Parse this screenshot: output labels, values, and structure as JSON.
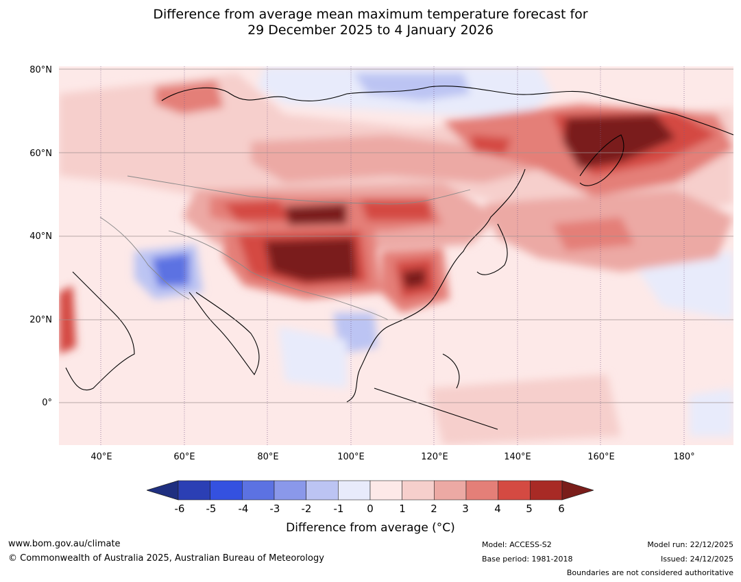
{
  "title_line1": "Difference from average mean maximum temperature forecast for",
  "title_line2": "29 December 2025 to 4 January 2026",
  "lat_labels": [
    "80°N",
    "60°N",
    "40°N",
    "20°N",
    "0°"
  ],
  "lon_labels": [
    "40°E",
    "60°E",
    "80°E",
    "100°E",
    "120°E",
    "140°E",
    "160°E",
    "180°"
  ],
  "colorbar": {
    "ticks": [
      "-6",
      "-5",
      "-4",
      "-3",
      "-2",
      "-1",
      "0",
      "1",
      "2",
      "3",
      "4",
      "5",
      "6"
    ],
    "colors": [
      "#1f2f80",
      "#2b3fb4",
      "#3451e0",
      "#5c72e2",
      "#8a98ea",
      "#bcc4f3",
      "#e8ebfb",
      "#fde9e8",
      "#f6cfcc",
      "#eca9a4",
      "#e47f78",
      "#d44a42",
      "#a82a25",
      "#7a1d1a"
    ],
    "label": "Difference from average (°C)"
  },
  "footer": {
    "website": "www.bom.gov.au/climate",
    "copyright": "© Commonwealth of Australia 2025, Australian Bureau of Meteorology",
    "model": "Model: ACCESS-S2",
    "base_period": "Base period: 1981-2018",
    "model_run": "Model run: 22/12/2025",
    "issued": "Issued: 24/12/2025",
    "boundaries": "Boundaries are not considered authoritative"
  },
  "map_regions": [
    {
      "name": "background",
      "value": "1"
    },
    {
      "name": "arctic-cool",
      "value": "-1"
    },
    {
      "name": "arctic-cool-core",
      "value": "-2"
    },
    {
      "name": "siberia-warm",
      "value": "2"
    },
    {
      "name": "siberia-warm-core",
      "value": "3"
    },
    {
      "name": "ne-siberia-warm",
      "value": "3"
    },
    {
      "name": "ne-siberia-hot",
      "value": "5"
    },
    {
      "name": "ne-siberia-extreme",
      "value": "6"
    },
    {
      "name": "mongolia-hot",
      "value": "5"
    },
    {
      "name": "tibet-hot",
      "value": "5"
    },
    {
      "name": "tibet-extreme",
      "value": "6"
    },
    {
      "name": "south-china-hot",
      "value": "5"
    },
    {
      "name": "iran-cool",
      "value": "-3"
    },
    {
      "name": "indochina-cool",
      "value": "-2"
    },
    {
      "name": "arabia-warm",
      "value": "4"
    },
    {
      "name": "pacific-warm",
      "value": "3"
    },
    {
      "name": "ocean-cool",
      "value": "-1"
    }
  ]
}
